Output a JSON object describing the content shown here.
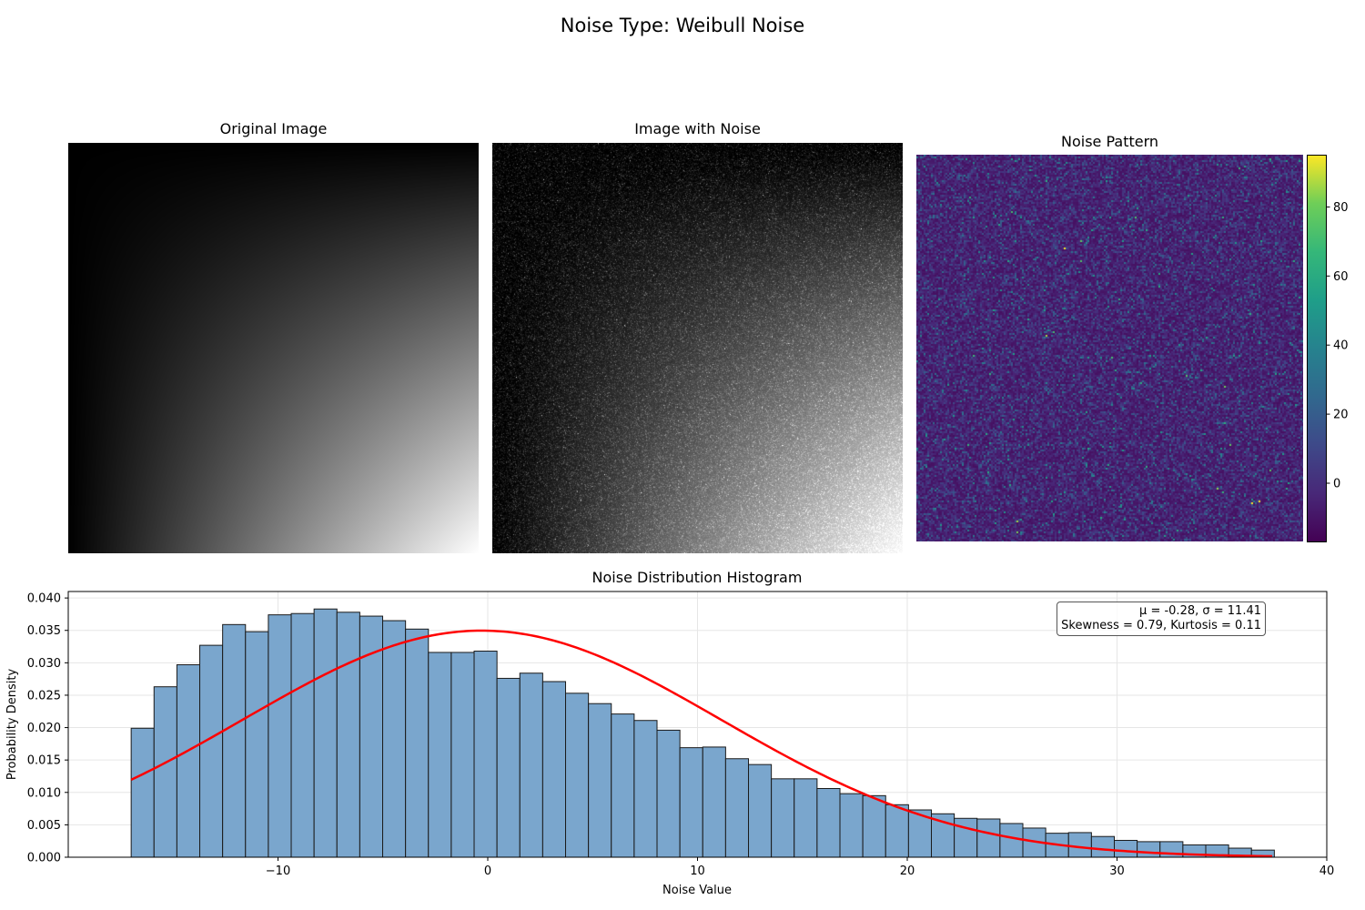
{
  "figure": {
    "title": "Noise Type: Weibull Noise"
  },
  "panels": {
    "original_title": "Original Image",
    "noisy_title": "Image with Noise",
    "noise_title": "Noise Pattern"
  },
  "colorbar": {
    "colormap": "viridis",
    "range": [
      -17,
      95
    ],
    "ticks": [
      0,
      20,
      40,
      60,
      80
    ],
    "tick_labels": [
      "0",
      "20",
      "40",
      "60",
      "80"
    ]
  },
  "stats": {
    "line1": "μ = -0.28, σ = 11.41",
    "line2": "Skewness = 0.79, Kurtosis = 0.11"
  },
  "chart_data": {
    "type": "bar",
    "title": "Noise Distribution Histogram",
    "xlabel": "Noise Value",
    "ylabel": "Probability Density",
    "xlim": [
      -20,
      40
    ],
    "ylim": [
      0,
      0.041
    ],
    "xticks": [
      -10,
      0,
      10,
      20,
      30,
      40
    ],
    "xtick_labels": [
      "−10",
      "0",
      "10",
      "20",
      "30",
      "40"
    ],
    "yticks": [
      0,
      0.005,
      0.01,
      0.015,
      0.02,
      0.025,
      0.03,
      0.035,
      0.04
    ],
    "ytick_labels": [
      "0.000",
      "0.005",
      "0.010",
      "0.015",
      "0.020",
      "0.025",
      "0.030",
      "0.035",
      "0.040"
    ],
    "grid": true,
    "bin_start": -17.0,
    "bin_width": 1.09,
    "values": [
      0.0199,
      0.0263,
      0.0297,
      0.0327,
      0.0359,
      0.0348,
      0.0374,
      0.0376,
      0.0383,
      0.0378,
      0.0372,
      0.0365,
      0.0352,
      0.0316,
      0.0316,
      0.0318,
      0.0276,
      0.0284,
      0.0271,
      0.0253,
      0.0237,
      0.0221,
      0.0211,
      0.0196,
      0.0169,
      0.017,
      0.0152,
      0.0143,
      0.0121,
      0.0121,
      0.0106,
      0.0098,
      0.0095,
      0.0081,
      0.0073,
      0.0067,
      0.006,
      0.0059,
      0.0052,
      0.0045,
      0.0037,
      0.0038,
      0.0032,
      0.0026,
      0.0024,
      0.0024,
      0.0019,
      0.0019,
      0.0014,
      0.0011
    ],
    "bar_color": "#7aa6cd",
    "bar_edge_color": "#1a1a1a",
    "fit_curve": {
      "type": "normal_pdf",
      "mu": -0.28,
      "sigma": 11.41,
      "x_range": [
        -17.0,
        37.4
      ],
      "color": "#ff0000"
    }
  }
}
